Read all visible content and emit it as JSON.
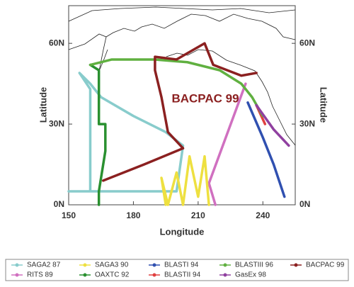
{
  "chart_data": {
    "type": "line",
    "xlabel": "Longitude",
    "ylabel": "Latitude",
    "annotation": "BACPAC 99",
    "xlim": [
      150,
      255
    ],
    "ylim": [
      0,
      74
    ],
    "xticks": [
      150,
      180,
      210,
      240
    ],
    "yticks": [
      {
        "value": 0,
        "label": "0N"
      },
      {
        "value": 30,
        "label": "30N"
      },
      {
        "value": 60,
        "label": "60N"
      }
    ],
    "series": [
      {
        "name": "SAGA2 87",
        "color": "#88cccc",
        "x": [
          150,
          200,
          203,
          195,
          180,
          165,
          160,
          155,
          160,
          160
        ],
        "values": [
          5,
          5,
          22,
          27,
          33,
          40,
          45,
          49,
          43,
          5
        ]
      },
      {
        "name": "RITS 89",
        "color": "#d070c0",
        "x": [
          218,
          215,
          232
        ],
        "values": [
          0,
          8,
          45
        ]
      },
      {
        "name": "SAGA3 90",
        "color": "#eee040",
        "x": [
          195,
          193,
          196,
          200,
          203,
          206,
          210,
          213,
          215
        ],
        "values": [
          0,
          10,
          0,
          12,
          0,
          18,
          3,
          18,
          0
        ]
      },
      {
        "name": "OAXTC 92",
        "color": "#2a9030",
        "x": [
          160,
          164,
          164,
          167,
          167,
          164,
          164
        ],
        "values": [
          52,
          50,
          30,
          30,
          20,
          5,
          0
        ]
      },
      {
        "name": "BLASTI 94",
        "color": "#3050b0",
        "x": [
          233,
          240,
          245,
          250
        ],
        "values": [
          38,
          25,
          15,
          3
        ]
      },
      {
        "name": "BLASTII 94",
        "color": "#e04040",
        "x": [
          237,
          241
        ],
        "values": [
          37,
          30
        ]
      },
      {
        "name": "BLASTIII 96",
        "color": "#60b040",
        "x": [
          160,
          170,
          190,
          205,
          220,
          230,
          235,
          240
        ],
        "values": [
          52,
          54,
          54,
          53,
          50,
          45,
          40,
          33
        ]
      },
      {
        "name": "GasEx 98",
        "color": "#9040a0",
        "x": [
          237,
          245,
          252
        ],
        "values": [
          37,
          28,
          22
        ]
      },
      {
        "name": "BACPAC 99",
        "color": "#8b2020",
        "x": [
          166,
          185,
          203,
          196,
          193,
          190,
          190,
          200,
          213,
          217,
          230,
          237
        ],
        "values": [
          9,
          15,
          21,
          27,
          40,
          50,
          55,
          54,
          60,
          52,
          48,
          49
        ]
      }
    ]
  }
}
